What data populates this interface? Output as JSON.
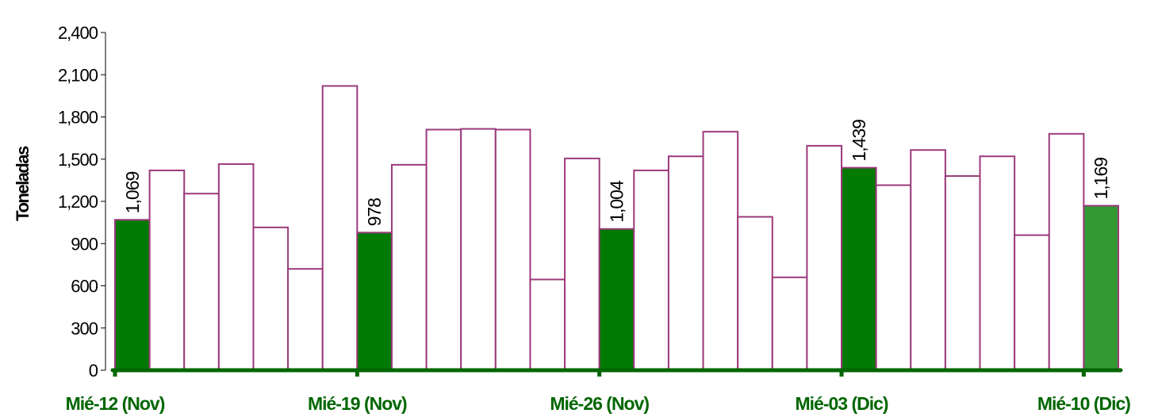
{
  "chart_data": {
    "type": "bar",
    "ylabel": "Toneladas",
    "xlabel": "",
    "ylim": [
      0,
      2400
    ],
    "yticks": [
      0,
      300,
      600,
      900,
      1200,
      1500,
      1800,
      2100,
      2400
    ],
    "ytick_labels": [
      "0",
      "300",
      "600",
      "900",
      "1,200",
      "1,500",
      "1,800",
      "2,100",
      "2,400"
    ],
    "grid": false,
    "values": [
      1069,
      1420,
      1255,
      1465,
      1015,
      720,
      2020,
      978,
      1460,
      1710,
      1715,
      1710,
      645,
      1505,
      1004,
      1420,
      1520,
      1695,
      1090,
      660,
      1595,
      1439,
      1315,
      1565,
      1380,
      1520,
      960,
      1680,
      1169
    ],
    "highlighted": [
      0,
      7,
      14,
      21,
      28
    ],
    "data_labels": {
      "0": "1,069",
      "7": "978",
      "14": "1,004",
      "21": "1,439",
      "28": "1,169"
    },
    "x_labels": [
      {
        "index": 0,
        "text": "Mié-12 (Nov)"
      },
      {
        "index": 7,
        "text": "Mié-19 (Nov)"
      },
      {
        "index": 14,
        "text": "Mié-26 (Nov)"
      },
      {
        "index": 21,
        "text": "Mié-03 (Dic)"
      },
      {
        "index": 28,
        "text": "Mié-10 (Dic)"
      }
    ],
    "colors": {
      "bar_outline": "#9b3a7a",
      "highlight_fill": "#007a00",
      "latest_fill": "#339933",
      "axis": "#006600",
      "x_label": "#006600"
    }
  }
}
